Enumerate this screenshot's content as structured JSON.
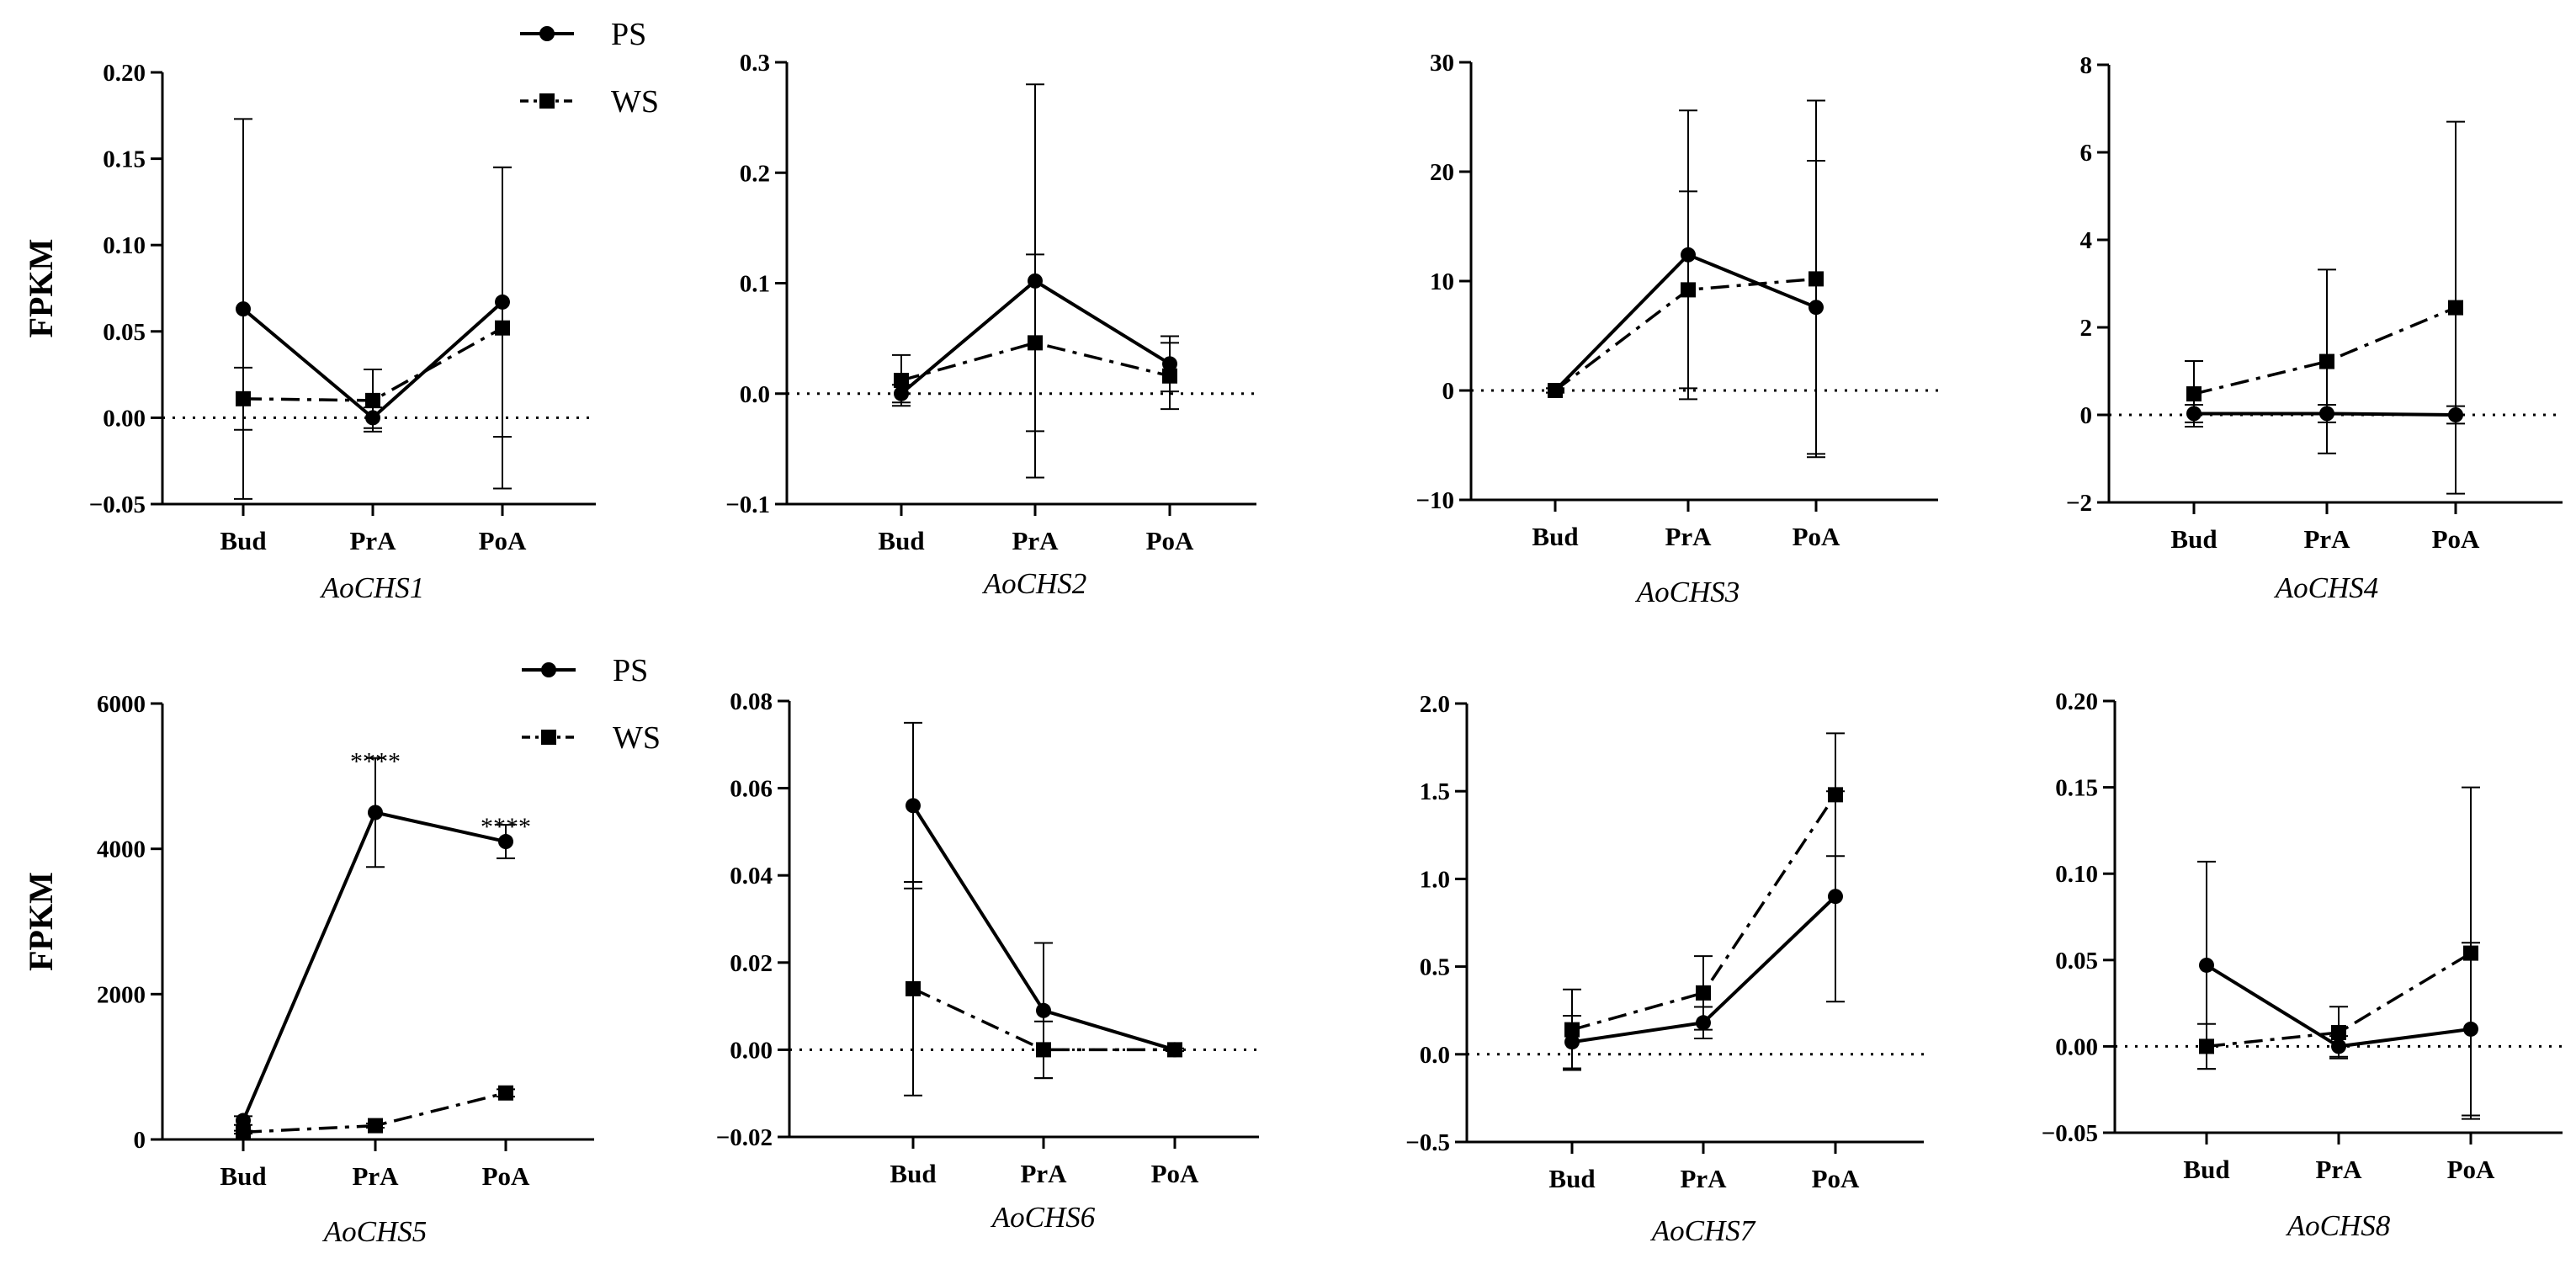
{
  "legend": {
    "ps_label": "PS",
    "ws_label": "WS"
  },
  "chart_data": [
    {
      "type": "line",
      "title": "AoCHS1",
      "ylabel": "FPKM",
      "categories": [
        "Bud",
        "PrA",
        "PoA"
      ],
      "ylim": [
        -0.05,
        0.2
      ],
      "yticks": [
        -0.05,
        0.0,
        0.05,
        0.1,
        0.15,
        0.2
      ],
      "ytick_labels": [
        "−0.05",
        "0.00",
        "0.05",
        "0.10",
        "0.15",
        "0.20"
      ],
      "series": [
        {
          "name": "PS",
          "values": [
            0.063,
            0.0,
            0.067
          ],
          "err": [
            0.11,
            0.006,
            0.078
          ]
        },
        {
          "name": "WS",
          "values": [
            0.011,
            0.01,
            0.052
          ],
          "err": [
            0.018,
            0.018,
            0.093
          ]
        }
      ],
      "annotations": []
    },
    {
      "type": "line",
      "title": "AoCHS2",
      "ylabel": "",
      "categories": [
        "Bud",
        "PrA",
        "PoA"
      ],
      "ylim": [
        -0.1,
        0.3
      ],
      "yticks": [
        -0.1,
        0.0,
        0.1,
        0.2,
        0.3
      ],
      "ytick_labels": [
        "−0.1",
        "0.0",
        "0.1",
        "0.2",
        "0.3"
      ],
      "series": [
        {
          "name": "PS",
          "values": [
            0.0,
            0.102,
            0.027
          ],
          "err": [
            0.008,
            0.178,
            0.025
          ]
        },
        {
          "name": "WS",
          "values": [
            0.012,
            0.046,
            0.016
          ],
          "err": [
            0.023,
            0.08,
            0.03
          ]
        }
      ],
      "annotations": []
    },
    {
      "type": "line",
      "title": "AoCHS3",
      "ylabel": "",
      "categories": [
        "Bud",
        "PrA",
        "PoA"
      ],
      "ylim": [
        -10,
        30
      ],
      "yticks": [
        -10,
        0,
        10,
        20,
        30
      ],
      "ytick_labels": [
        "−10",
        "0",
        "10",
        "20",
        "30"
      ],
      "series": [
        {
          "name": "PS",
          "values": [
            0.0,
            12.4,
            7.6
          ],
          "err": [
            0.2,
            13.2,
            13.4
          ]
        },
        {
          "name": "WS",
          "values": [
            0.0,
            9.2,
            10.2
          ],
          "err": [
            0.2,
            9.0,
            16.3
          ]
        }
      ],
      "annotations": []
    },
    {
      "type": "line",
      "title": "AoCHS4",
      "ylabel": "",
      "categories": [
        "Bud",
        "PrA",
        "PoA"
      ],
      "ylim": [
        -2,
        8
      ],
      "yticks": [
        -2,
        0,
        2,
        4,
        6,
        8
      ],
      "ytick_labels": [
        "−2",
        "0",
        "2",
        "4",
        "6",
        "8"
      ],
      "series": [
        {
          "name": "PS",
          "values": [
            0.03,
            0.03,
            0.0
          ],
          "err": [
            0.2,
            0.2,
            0.2
          ]
        },
        {
          "name": "WS",
          "values": [
            0.48,
            1.22,
            2.45
          ],
          "err": [
            0.75,
            2.1,
            4.25
          ]
        }
      ],
      "annotations": []
    },
    {
      "type": "line",
      "title": "AoCHS5",
      "ylabel": "FPKM",
      "categories": [
        "Bud",
        "PrA",
        "PoA"
      ],
      "ylim": [
        0,
        6000
      ],
      "yticks": [
        0,
        2000,
        4000,
        6000
      ],
      "ytick_labels": [
        "0",
        "2000",
        "4000",
        "6000"
      ],
      "series": [
        {
          "name": "PS",
          "values": [
            260,
            4500,
            4100
          ],
          "err": [
            60,
            750,
            230
          ]
        },
        {
          "name": "WS",
          "values": [
            100,
            190,
            640
          ],
          "err": [
            20,
            30,
            50
          ]
        }
      ],
      "annotations": [
        {
          "category": "PrA",
          "text": "****",
          "y": 5300
        },
        {
          "category": "PoA",
          "text": "****",
          "y": 4400
        }
      ]
    },
    {
      "type": "line",
      "title": "AoCHS6",
      "ylabel": "",
      "categories": [
        "Bud",
        "PrA",
        "PoA"
      ],
      "ylim": [
        -0.02,
        0.08
      ],
      "yticks": [
        -0.02,
        0.0,
        0.02,
        0.04,
        0.06,
        0.08
      ],
      "ytick_labels": [
        "−0.02",
        "0.00",
        "0.02",
        "0.04",
        "0.06",
        "0.08"
      ],
      "series": [
        {
          "name": "PS",
          "values": [
            0.056,
            0.009,
            0.0
          ],
          "err": [
            0.019,
            0.0155,
            0.0003
          ]
        },
        {
          "name": "WS",
          "values": [
            0.014,
            0.0,
            0.0
          ],
          "err": [
            0.0245,
            0.0065,
            0.0003
          ]
        }
      ],
      "annotations": []
    },
    {
      "type": "line",
      "title": "AoCHS7",
      "ylabel": "",
      "categories": [
        "Bud",
        "PrA",
        "PoA"
      ],
      "ylim": [
        -0.5,
        2.0
      ],
      "yticks": [
        -0.5,
        0.0,
        0.5,
        1.0,
        1.5,
        2.0
      ],
      "ytick_labels": [
        "−0.5",
        "0.0",
        "0.5",
        "1.0",
        "1.5",
        "2.0"
      ],
      "series": [
        {
          "name": "PS",
          "values": [
            0.07,
            0.18,
            0.9
          ],
          "err": [
            0.15,
            0.09,
            0.6
          ]
        },
        {
          "name": "WS",
          "values": [
            0.14,
            0.35,
            1.48
          ],
          "err": [
            0.23,
            0.21,
            0.35
          ]
        }
      ],
      "annotations": []
    },
    {
      "type": "line",
      "title": "AoCHS8",
      "ylabel": "",
      "categories": [
        "Bud",
        "PrA",
        "PoA"
      ],
      "ylim": [
        -0.05,
        0.2
      ],
      "yticks": [
        -0.05,
        0.0,
        0.05,
        0.1,
        0.15,
        0.2
      ],
      "ytick_labels": [
        "−0.05",
        "0.00",
        "0.05",
        "0.10",
        "0.15",
        "0.20"
      ],
      "series": [
        {
          "name": "PS",
          "values": [
            0.047,
            0.0,
            0.01
          ],
          "err": [
            0.06,
            0.006,
            0.05
          ]
        },
        {
          "name": "WS",
          "values": [
            0.0,
            0.008,
            0.054
          ],
          "err": [
            0.013,
            0.015,
            0.096
          ]
        }
      ],
      "annotations": []
    }
  ]
}
